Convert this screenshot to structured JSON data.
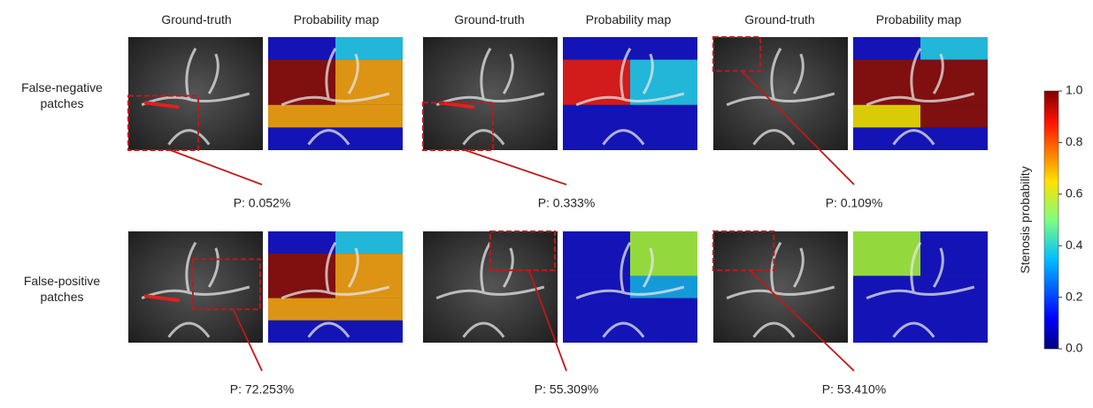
{
  "headers": {
    "ground_truth": "Ground-truth",
    "probability_map": "Probability map"
  },
  "rows": [
    {
      "label": "False-negative\npatches",
      "p_values": [
        "P: 0.052%",
        "P: 0.333%",
        "P: 0.109%"
      ]
    },
    {
      "label": "False-positive\npatches",
      "p_values": [
        "P: 72.253%",
        "P: 55.309%",
        "P: 53.410%"
      ]
    }
  ],
  "colorbar": {
    "label": "Stenosis probability",
    "lim": [
      0,
      1
    ],
    "ticks": [
      {
        "value": 0,
        "label": "0.0"
      },
      0.2,
      0.4,
      0.6,
      0.8,
      {
        "value": 1,
        "label": "1.0"
      }
    ]
  }
}
